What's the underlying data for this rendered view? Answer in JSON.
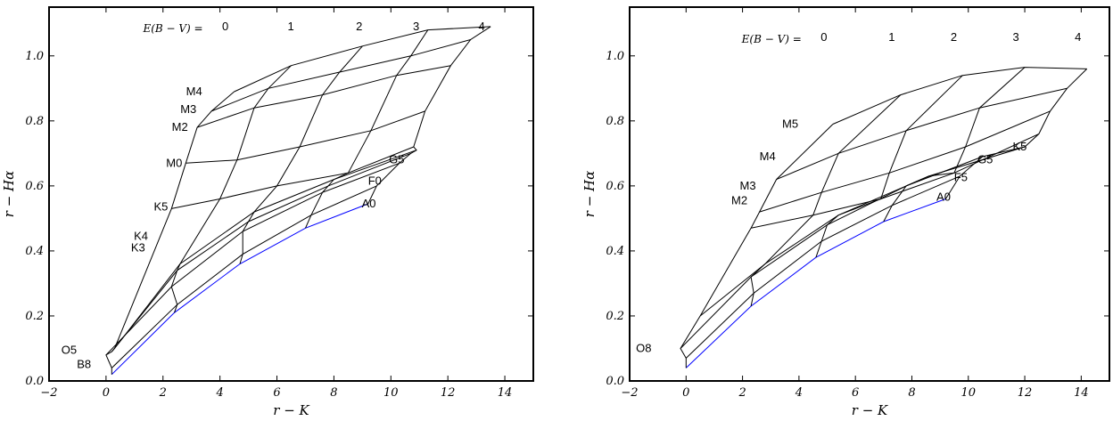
{
  "chart_data": [
    {
      "type": "line",
      "title": "",
      "xlabel": "r − K",
      "ylabel": "r − Hα",
      "xlim": [
        -2,
        15
      ],
      "ylim": [
        0,
        1.15
      ],
      "xticks": [
        "−2",
        "0",
        "2",
        "4",
        "6",
        "8",
        "10",
        "12",
        "14"
      ],
      "xtick_values": [
        -2,
        0,
        2,
        4,
        6,
        8,
        10,
        12,
        14
      ],
      "yticks": [
        "0.0",
        "0.2",
        "0.4",
        "0.6",
        "0.8",
        "1.0"
      ],
      "ytick_values": [
        0,
        0.2,
        0.4,
        0.6,
        0.8,
        1.0
      ],
      "ebv_label": "E(B − V) =",
      "ebv_values": [
        "0",
        "1",
        "2",
        "3",
        "4"
      ],
      "ebv_label_x": [
        4.5,
        6.8,
        9.2,
        11.2,
        13.5
      ],
      "spectral_labels": [
        {
          "text": "M4",
          "x": 3.5,
          "y": 0.89
        },
        {
          "text": "M3",
          "x": 3.3,
          "y": 0.835
        },
        {
          "text": "M2",
          "x": 3.0,
          "y": 0.78
        },
        {
          "text": "M0",
          "x": 2.8,
          "y": 0.67
        },
        {
          "text": "K5",
          "x": 2.3,
          "y": 0.535
        },
        {
          "text": "K4",
          "x": 1.6,
          "y": 0.445
        },
        {
          "text": "K3",
          "x": 1.5,
          "y": 0.41
        },
        {
          "text": "O5",
          "x": -0.9,
          "y": 0.095
        },
        {
          "text": "B8",
          "x": -0.4,
          "y": 0.05
        },
        {
          "text": "G5",
          "x": 10.6,
          "y": 0.68
        },
        {
          "text": "F0",
          "x": 9.8,
          "y": 0.615
        },
        {
          "text": "A0",
          "x": 9.6,
          "y": 0.545
        }
      ],
      "grid": {
        "ebv": [
          0,
          1,
          2,
          3,
          4
        ],
        "series": [
          {
            "name": "A0",
            "color": "#0000ff",
            "x": [
              0.2,
              2.4,
              4.7,
              7.0,
              9.2
            ],
            "y": [
              0.02,
              0.21,
              0.36,
              0.47,
              0.545
            ]
          },
          {
            "name": "F0",
            "color": "#000000",
            "x": [
              0.2,
              2.5,
              4.8,
              7.2,
              9.5
            ],
            "y": [
              0.04,
              0.235,
              0.39,
              0.51,
              0.6
            ]
          },
          {
            "name": "G5",
            "color": "#000000",
            "x": [
              0.0,
              2.3,
              4.8,
              7.6,
              10.3
            ],
            "y": [
              0.08,
              0.29,
              0.46,
              0.58,
              0.67
            ]
          },
          {
            "name": "K3",
            "color": "#000000",
            "x": [
              0.2,
              2.5,
              5.0,
              7.8,
              10.7
            ],
            "y": [
              0.09,
              0.34,
              0.49,
              0.6,
              0.7
            ]
          },
          {
            "name": "K4",
            "color": "#000000",
            "x": [
              0.3,
              2.6,
              5.2,
              8.0,
              10.9
            ],
            "y": [
              0.1,
              0.36,
              0.52,
              0.62,
              0.71
            ]
          },
          {
            "name": "K5",
            "color": "#000000",
            "x": [
              2.3,
              4.0,
              6.0,
              8.5,
              10.8
            ],
            "y": [
              0.53,
              0.56,
              0.6,
              0.64,
              0.72
            ]
          },
          {
            "name": "M0",
            "color": "#000000",
            "x": [
              2.8,
              4.6,
              6.8,
              9.3,
              11.2
            ],
            "y": [
              0.67,
              0.68,
              0.72,
              0.77,
              0.83
            ]
          },
          {
            "name": "M2",
            "color": "#000000",
            "x": [
              3.2,
              5.2,
              7.6,
              10.2,
              12.1
            ],
            "y": [
              0.78,
              0.84,
              0.88,
              0.94,
              0.97
            ]
          },
          {
            "name": "M3",
            "color": "#000000",
            "x": [
              3.7,
              5.7,
              8.2,
              10.7,
              12.8
            ],
            "y": [
              0.83,
              0.9,
              0.95,
              1.0,
              1.05
            ]
          },
          {
            "name": "M4",
            "color": "#000000",
            "x": [
              4.5,
              6.5,
              9.0,
              11.3,
              13.5
            ],
            "y": [
              0.89,
              0.97,
              1.03,
              1.08,
              1.09
            ]
          }
        ]
      }
    },
    {
      "type": "line",
      "title": "",
      "xlabel": "r − K",
      "ylabel": "r − Hα",
      "xlim": [
        -2,
        15
      ],
      "ylim": [
        0,
        1.15
      ],
      "xticks": [
        "−2",
        "0",
        "2",
        "4",
        "6",
        "8",
        "10",
        "12",
        "14"
      ],
      "xtick_values": [
        -2,
        0,
        2,
        4,
        6,
        8,
        10,
        12,
        14
      ],
      "yticks": [
        "0.0",
        "0.2",
        "0.4",
        "0.6",
        "0.8",
        "1.0"
      ],
      "ytick_values": [
        0,
        0.2,
        0.4,
        0.6,
        0.8,
        1.0
      ],
      "ebv_label": "E(B − V) =",
      "ebv_values": [
        "0",
        "1",
        "2",
        "3",
        "4"
      ],
      "ebv_label_x": [
        5.2,
        7.6,
        9.8,
        12.0,
        14.2
      ],
      "spectral_labels": [
        {
          "text": "M5",
          "x": 4.1,
          "y": 0.79
        },
        {
          "text": "M4",
          "x": 3.3,
          "y": 0.69
        },
        {
          "text": "M3",
          "x": 2.6,
          "y": 0.6
        },
        {
          "text": "M2",
          "x": 2.3,
          "y": 0.555
        },
        {
          "text": "O8",
          "x": -1.1,
          "y": 0.1
        },
        {
          "text": "G5",
          "x": 11.0,
          "y": 0.68
        },
        {
          "text": "K5",
          "x": 12.2,
          "y": 0.72
        },
        {
          "text": "F5",
          "x": 10.1,
          "y": 0.625
        },
        {
          "text": "A0",
          "x": 9.5,
          "y": 0.565
        }
      ],
      "grid": {
        "ebv": [
          0,
          1,
          2,
          3,
          4
        ],
        "series": [
          {
            "name": "A0",
            "color": "#0000ff",
            "x": [
              0.0,
              2.3,
              4.6,
              7.0,
              9.2
            ],
            "y": [
              0.04,
              0.23,
              0.38,
              0.49,
              0.56
            ]
          },
          {
            "name": "F5",
            "color": "#000000",
            "x": [
              0.0,
              2.4,
              4.8,
              7.3,
              9.7
            ],
            "y": [
              0.07,
              0.27,
              0.43,
              0.54,
              0.63
            ]
          },
          {
            "name": "G5",
            "color": "#000000",
            "x": [
              -0.2,
              2.3,
              5.0,
              7.8,
              10.5
            ],
            "y": [
              0.1,
              0.32,
              0.48,
              0.6,
              0.69
            ]
          },
          {
            "name": "K5",
            "color": "#000000",
            "x": [
              0.5,
              2.8,
              5.4,
              8.6,
              12.0
            ],
            "y": [
              0.2,
              0.36,
              0.51,
              0.63,
              0.72
            ]
          },
          {
            "name": "M2",
            "color": "#000000",
            "x": [
              2.3,
              4.5,
              6.9,
              9.5,
              12.5
            ],
            "y": [
              0.47,
              0.51,
              0.56,
              0.64,
              0.76
            ]
          },
          {
            "name": "M3",
            "color": "#000000",
            "x": [
              2.6,
              4.8,
              7.2,
              9.9,
              12.9
            ],
            "y": [
              0.52,
              0.58,
              0.64,
              0.72,
              0.83
            ]
          },
          {
            "name": "M4",
            "color": "#000000",
            "x": [
              3.2,
              5.4,
              7.8,
              10.4,
              13.5
            ],
            "y": [
              0.62,
              0.7,
              0.77,
              0.84,
              0.9
            ]
          },
          {
            "name": "M5",
            "color": "#000000",
            "x": [
              5.2,
              7.6,
              9.8,
              12.0,
              14.2
            ],
            "y": [
              0.79,
              0.88,
              0.94,
              0.965,
              0.96
            ]
          }
        ]
      }
    }
  ]
}
